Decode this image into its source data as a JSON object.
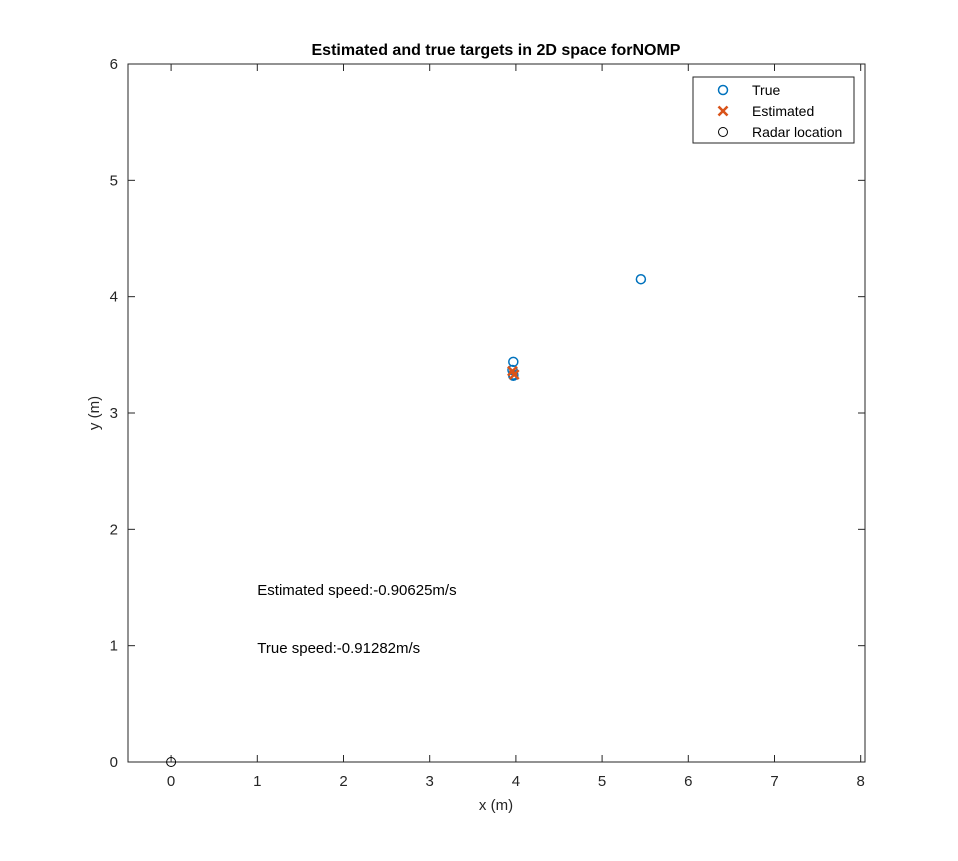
{
  "chart_data": {
    "type": "scatter",
    "title": "Estimated and true targets in 2D space forNOMP",
    "xlabel": "x (m)",
    "ylabel": "y (m)",
    "xlim": [
      -0.5,
      8.05
    ],
    "ylim": [
      0,
      6
    ],
    "xticks": [
      0,
      1,
      2,
      3,
      4,
      5,
      6,
      7,
      8
    ],
    "yticks": [
      0,
      1,
      2,
      3,
      4,
      5,
      6
    ],
    "grid": false,
    "legend_position": "top-right",
    "series": [
      {
        "name": "True",
        "marker": "circle",
        "color": "#0072BD",
        "points": [
          {
            "x": 5.45,
            "y": 4.15
          },
          {
            "x": 3.97,
            "y": 3.44
          },
          {
            "x": 3.96,
            "y": 3.37
          },
          {
            "x": 3.97,
            "y": 3.33
          },
          {
            "x": 3.97,
            "y": 3.32
          }
        ]
      },
      {
        "name": "Estimated",
        "marker": "x",
        "color": "#D95319",
        "points": [
          {
            "x": 3.96,
            "y": 3.36
          },
          {
            "x": 3.98,
            "y": 3.33
          }
        ]
      },
      {
        "name": "Radar location",
        "marker": "circle",
        "color": "#000000",
        "points": [
          {
            "x": 0,
            "y": 0
          }
        ]
      }
    ],
    "annotations": [
      {
        "text": "Estimated speed:-0.90625m/s",
        "x": 1.0,
        "y": 1.48
      },
      {
        "text": "True speed:-0.91282m/s",
        "x": 1.0,
        "y": 0.98
      }
    ]
  }
}
